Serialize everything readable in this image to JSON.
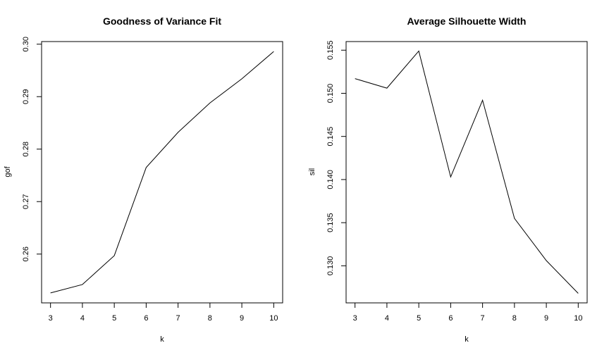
{
  "chart_data": [
    {
      "type": "line",
      "title": "Goodness of Variance Fit",
      "xlabel": "k",
      "ylabel": "gof",
      "x": [
        3,
        4,
        5,
        6,
        7,
        8,
        9,
        10
      ],
      "series": [
        {
          "values": [
            0.2526,
            0.2542,
            0.2597,
            0.2765,
            0.2832,
            0.2888,
            0.2934,
            0.2986
          ]
        }
      ],
      "xticks": [
        3,
        4,
        5,
        6,
        7,
        8,
        9,
        10
      ],
      "yticks": [
        0.26,
        0.27,
        0.28,
        0.29,
        0.3
      ],
      "ytick_labels": [
        "0.26",
        "0.27",
        "0.28",
        "0.29",
        "0.30"
      ],
      "xlim": [
        2.72,
        10.28
      ],
      "ylim": [
        0.2507,
        0.3005
      ],
      "grid": false,
      "line_color": "#000000"
    },
    {
      "type": "line",
      "title": "Average Silhouette Width",
      "xlabel": "k",
      "ylabel": "sil",
      "x": [
        3,
        4,
        5,
        6,
        7,
        8,
        9,
        10
      ],
      "series": [
        {
          "values": [
            0.1517,
            0.1506,
            0.1549,
            0.1403,
            0.1492,
            0.1355,
            0.1306,
            0.1268
          ]
        }
      ],
      "xticks": [
        3,
        4,
        5,
        6,
        7,
        8,
        9,
        10
      ],
      "yticks": [
        0.13,
        0.135,
        0.14,
        0.145,
        0.15,
        0.155
      ],
      "ytick_labels": [
        "0.130",
        "0.135",
        "0.140",
        "0.145",
        "0.150",
        "0.155"
      ],
      "xlim": [
        2.72,
        10.28
      ],
      "ylim": [
        0.1257,
        0.156
      ],
      "grid": false,
      "line_color": "#000000"
    }
  ]
}
